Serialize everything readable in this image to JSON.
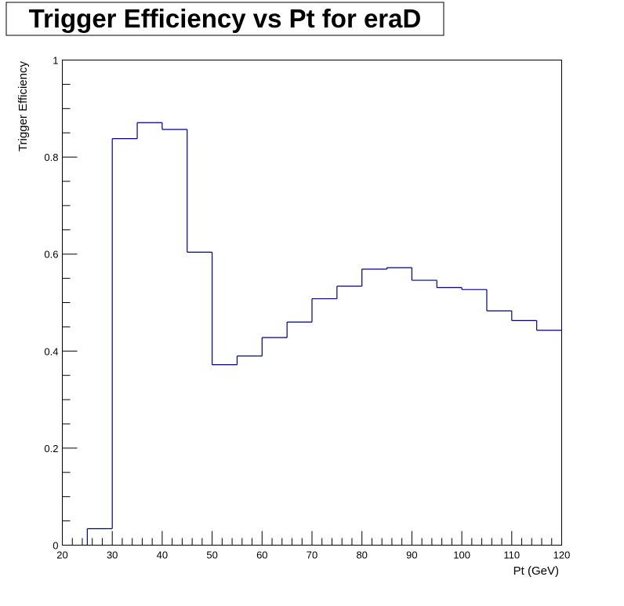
{
  "chart_data": {
    "type": "line",
    "style": "step-histogram",
    "title": "Trigger Efficiency vs Pt for eraD",
    "xlabel": "Pt (GeV)",
    "ylabel": "Trigger Efficiency",
    "xlim": [
      20,
      120
    ],
    "ylim": [
      0,
      1
    ],
    "x_ticks": [
      "20",
      "30",
      "40",
      "50",
      "60",
      "70",
      "80",
      "90",
      "100",
      "110",
      "120"
    ],
    "y_ticks": [
      "0",
      "0.2",
      "0.4",
      "0.6",
      "0.8",
      "1"
    ],
    "bin_width": 5,
    "series": [
      {
        "bin_low_edges": [
          25,
          30,
          35,
          40,
          45,
          50,
          55,
          60,
          65,
          70,
          75,
          80,
          85,
          90,
          95,
          100,
          105,
          110,
          115
        ],
        "values": [
          0.034,
          0.838,
          0.871,
          0.857,
          0.604,
          0.372,
          0.39,
          0.428,
          0.46,
          0.508,
          0.534,
          0.569,
          0.572,
          0.546,
          0.531,
          0.527,
          0.483,
          0.463,
          0.443
        ]
      }
    ],
    "line_color": "#000080",
    "grid": false,
    "legend": "none"
  }
}
